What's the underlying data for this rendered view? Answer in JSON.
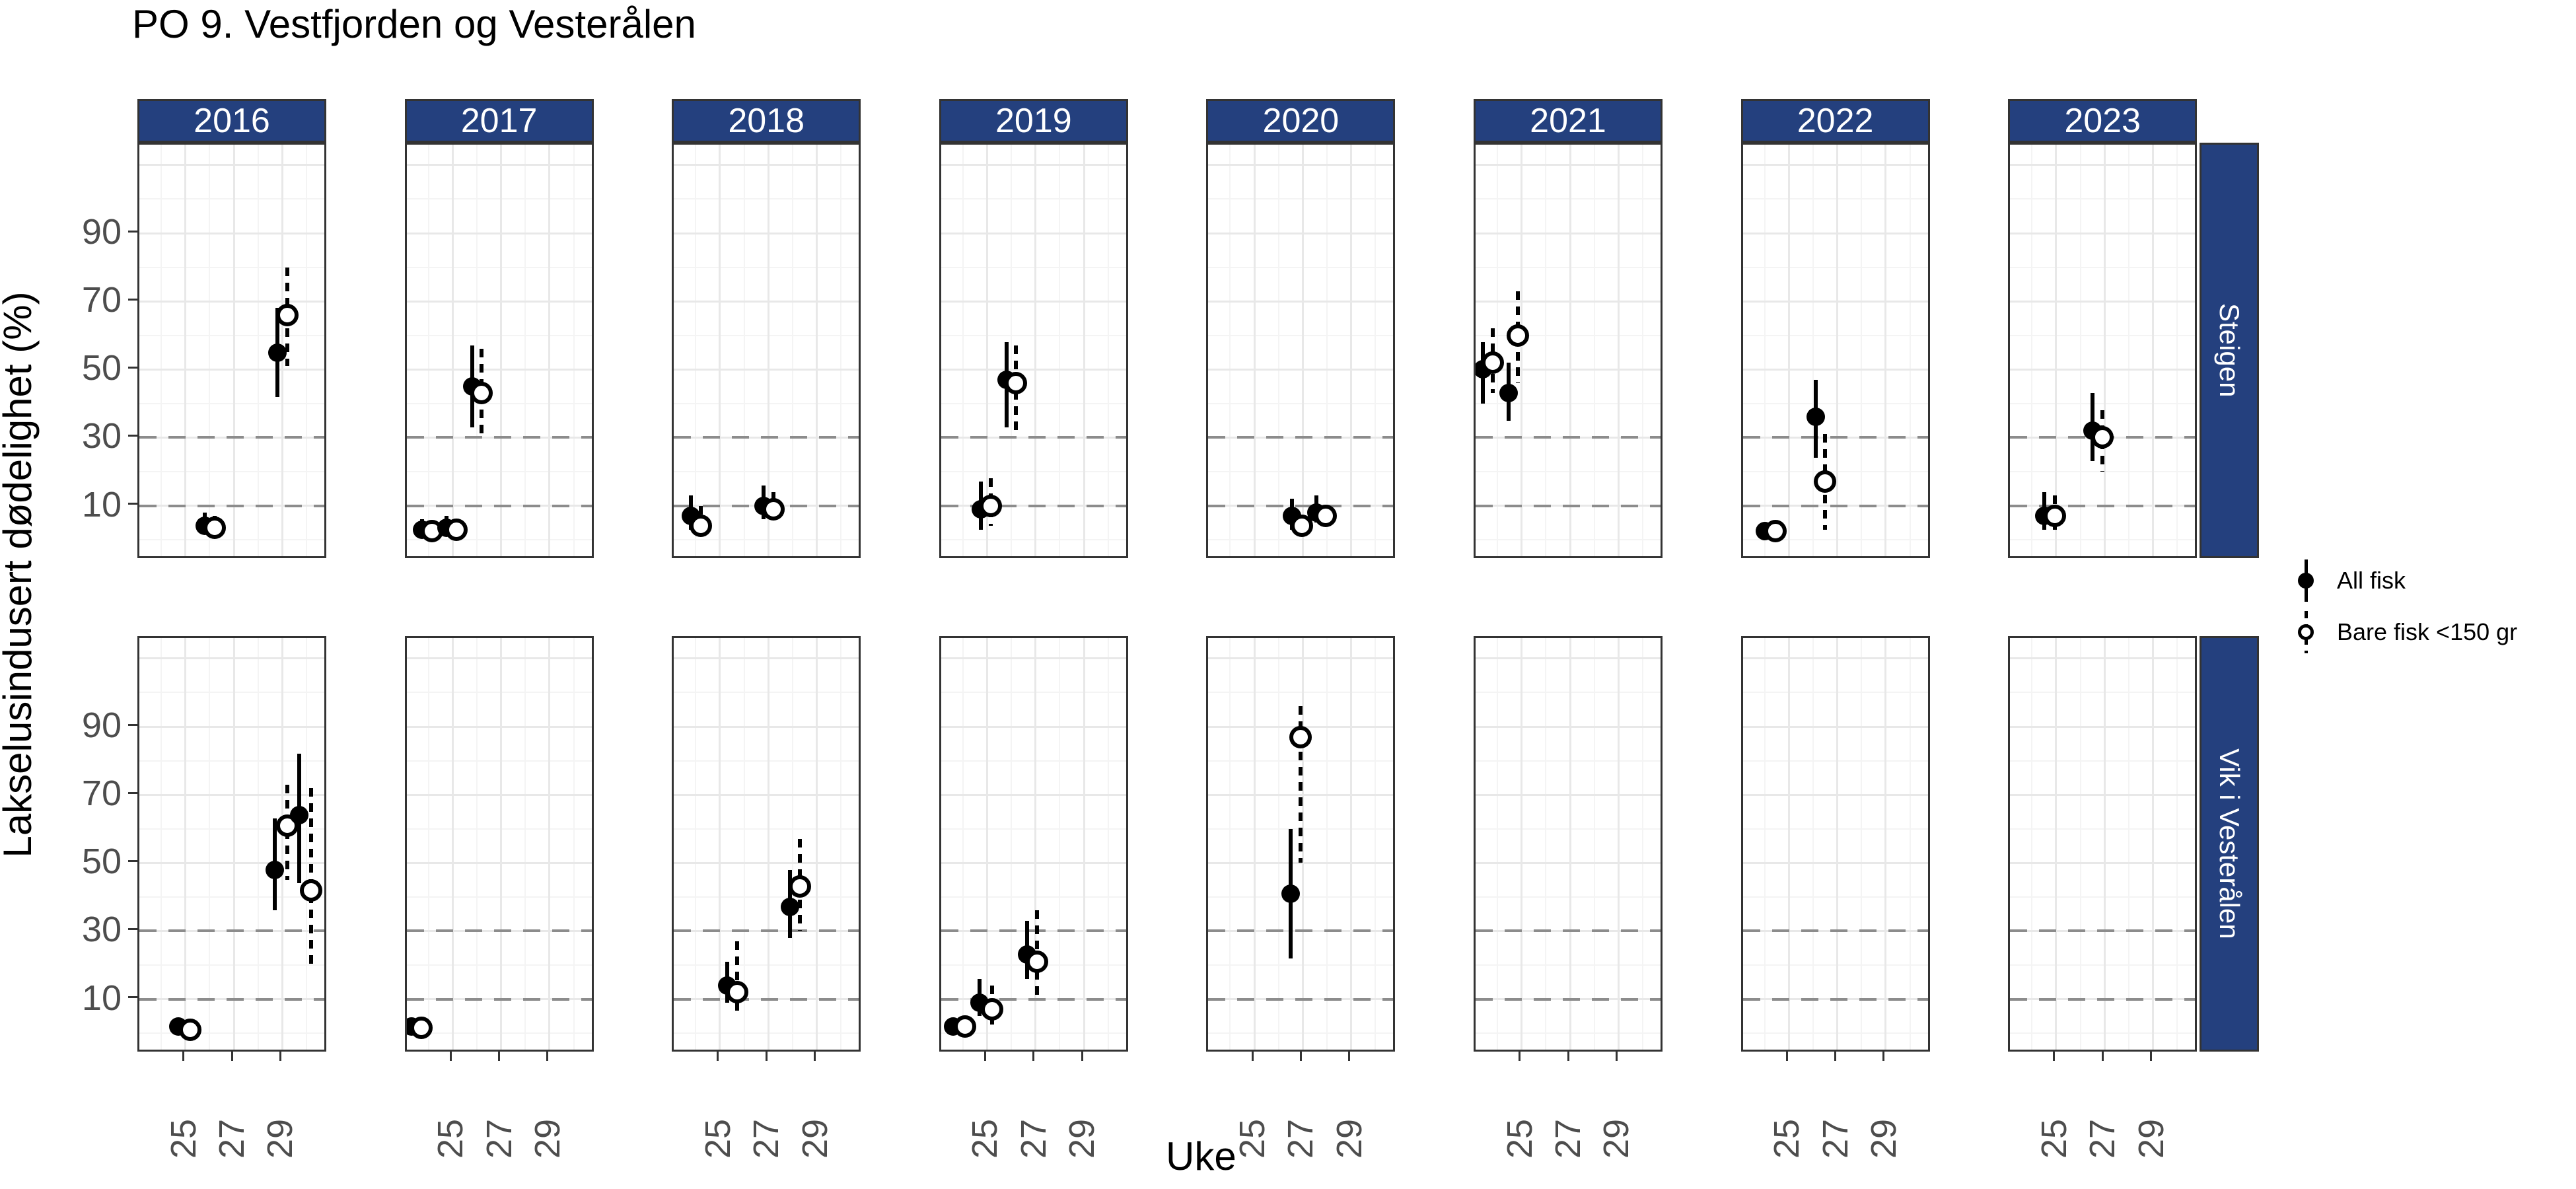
{
  "title": "PO 9. Vestfjorden og Vesterålen",
  "axes": {
    "x_title": "Uke",
    "y_title": "Lakselusindusert dødelighet (%)"
  },
  "legend": {
    "items": [
      {
        "label": "All fisk",
        "marker": "filled-circle",
        "line": "solid"
      },
      {
        "label": "Bare fisk <150 gr",
        "marker": "open-circle",
        "line": "dashed"
      }
    ]
  },
  "colors": {
    "strip_bg": "#24407E",
    "strip_text": "#FFFFFF",
    "panel_border": "#333333",
    "grid_major": "#E8E8E8",
    "grid_minor": "#F4F4F4",
    "ref_line": "#8C8C8C",
    "axis_text": "#4D4D4D",
    "point": "#000000"
  },
  "chart_data": {
    "type": "scatter",
    "title": "PO 9. Vestfjorden og Vesterålen",
    "xlabel": "Uke",
    "ylabel": "Lakselusindusert dødelighet (%)",
    "col_facets": [
      "2016",
      "2017",
      "2018",
      "2019",
      "2020",
      "2021",
      "2022",
      "2023"
    ],
    "row_facets": [
      "Steigen",
      "Vik i Vesterålen"
    ],
    "x_ticks": [
      25,
      27,
      29
    ],
    "y_ticks": [
      10,
      30,
      50,
      70,
      90
    ],
    "x_minor": [
      24,
      26,
      28,
      30
    ],
    "y_minor": [
      0,
      20,
      40,
      60,
      80,
      100
    ],
    "y_major_extra": [
      110
    ],
    "x_domain": [
      23.1,
      30.9
    ],
    "y_domain": [
      -6,
      116
    ],
    "ref_lines": [
      10,
      30
    ],
    "grid": true,
    "legend_position": "right",
    "series": [
      {
        "name": "All fisk",
        "key": "all",
        "marker": "filled",
        "line": "solid"
      },
      {
        "name": "Bare fisk <150 gr",
        "key": "bare",
        "marker": "open",
        "line": "dashed"
      }
    ],
    "points": [
      {
        "row": "Steigen",
        "year": "2016",
        "series": "all",
        "week": 25.8,
        "y": 4,
        "lo": 2,
        "hi": 8
      },
      {
        "row": "Steigen",
        "year": "2016",
        "series": "bare",
        "week": 26.2,
        "y": 3.5,
        "lo": 1,
        "hi": 7
      },
      {
        "row": "Steigen",
        "year": "2016",
        "series": "all",
        "week": 28.8,
        "y": 55,
        "lo": 42,
        "hi": 68
      },
      {
        "row": "Steigen",
        "year": "2016",
        "series": "bare",
        "week": 29.2,
        "y": 66,
        "lo": 51,
        "hi": 80
      },
      {
        "row": "Steigen",
        "year": "2017",
        "series": "all",
        "week": 23.75,
        "y": 3,
        "lo": 1,
        "hi": 6
      },
      {
        "row": "Steigen",
        "year": "2017",
        "series": "bare",
        "week": 24.15,
        "y": 2.5,
        "lo": 0.5,
        "hi": 5
      },
      {
        "row": "Steigen",
        "year": "2017",
        "series": "all",
        "week": 24.75,
        "y": 3.5,
        "lo": 1.5,
        "hi": 7
      },
      {
        "row": "Steigen",
        "year": "2017",
        "series": "bare",
        "week": 25.15,
        "y": 3,
        "lo": 1,
        "hi": 6
      },
      {
        "row": "Steigen",
        "year": "2017",
        "series": "all",
        "week": 25.8,
        "y": 45,
        "lo": 33,
        "hi": 57
      },
      {
        "row": "Steigen",
        "year": "2017",
        "series": "bare",
        "week": 26.2,
        "y": 43,
        "lo": 30,
        "hi": 56
      },
      {
        "row": "Steigen",
        "year": "2018",
        "series": "all",
        "week": 23.8,
        "y": 7,
        "lo": 3,
        "hi": 13
      },
      {
        "row": "Steigen",
        "year": "2018",
        "series": "bare",
        "week": 24.2,
        "y": 4,
        "lo": 1,
        "hi": 10
      },
      {
        "row": "Steigen",
        "year": "2018",
        "series": "all",
        "week": 26.8,
        "y": 10,
        "lo": 6,
        "hi": 16
      },
      {
        "row": "Steigen",
        "year": "2018",
        "series": "bare",
        "week": 27.2,
        "y": 9,
        "lo": 5,
        "hi": 14
      },
      {
        "row": "Steigen",
        "year": "2019",
        "series": "all",
        "week": 24.75,
        "y": 9,
        "lo": 3,
        "hi": 17
      },
      {
        "row": "Steigen",
        "year": "2019",
        "series": "bare",
        "week": 25.15,
        "y": 10,
        "lo": 4,
        "hi": 18
      },
      {
        "row": "Steigen",
        "year": "2019",
        "series": "all",
        "week": 25.8,
        "y": 47,
        "lo": 33,
        "hi": 58
      },
      {
        "row": "Steigen",
        "year": "2019",
        "series": "bare",
        "week": 26.2,
        "y": 46,
        "lo": 32,
        "hi": 57
      },
      {
        "row": "Steigen",
        "year": "2020",
        "series": "all",
        "week": 26.55,
        "y": 7,
        "lo": 3,
        "hi": 12
      },
      {
        "row": "Steigen",
        "year": "2020",
        "series": "bare",
        "week": 26.95,
        "y": 4,
        "lo": 1.5,
        "hi": 7
      },
      {
        "row": "Steigen",
        "year": "2020",
        "series": "all",
        "week": 27.55,
        "y": 8,
        "lo": 5,
        "hi": 13
      },
      {
        "row": "Steigen",
        "year": "2020",
        "series": "bare",
        "week": 27.95,
        "y": 7,
        "lo": 4,
        "hi": 10
      },
      {
        "row": "Steigen",
        "year": "2021",
        "series": "all",
        "week": 23.4,
        "y": 50,
        "lo": 40,
        "hi": 58
      },
      {
        "row": "Steigen",
        "year": "2021",
        "series": "bare",
        "week": 23.8,
        "y": 52,
        "lo": 43,
        "hi": 62
      },
      {
        "row": "Steigen",
        "year": "2021",
        "series": "all",
        "week": 24.45,
        "y": 43,
        "lo": 35,
        "hi": 52
      },
      {
        "row": "Steigen",
        "year": "2021",
        "series": "bare",
        "week": 24.85,
        "y": 60,
        "lo": 46,
        "hi": 73
      },
      {
        "row": "Steigen",
        "year": "2022",
        "series": "all",
        "week": 24.0,
        "y": 2.5
      },
      {
        "row": "Steigen",
        "year": "2022",
        "series": "bare",
        "week": 24.45,
        "y": 2.5
      },
      {
        "row": "Steigen",
        "year": "2022",
        "series": "all",
        "week": 26.1,
        "y": 36,
        "lo": 24,
        "hi": 47
      },
      {
        "row": "Steigen",
        "year": "2022",
        "series": "bare",
        "week": 26.5,
        "y": 17,
        "lo": 3,
        "hi": 31
      },
      {
        "row": "Steigen",
        "year": "2023",
        "series": "all",
        "week": 24.5,
        "y": 7,
        "lo": 3,
        "hi": 14
      },
      {
        "row": "Steigen",
        "year": "2023",
        "series": "bare",
        "week": 24.95,
        "y": 7,
        "lo": 3,
        "hi": 13
      },
      {
        "row": "Steigen",
        "year": "2023",
        "series": "all",
        "week": 26.5,
        "y": 32,
        "lo": 23,
        "hi": 43
      },
      {
        "row": "Steigen",
        "year": "2023",
        "series": "bare",
        "week": 26.9,
        "y": 30,
        "lo": 20,
        "hi": 38
      },
      {
        "row": "Vik i Vesterålen",
        "year": "2016",
        "series": "all",
        "week": 24.7,
        "y": 2
      },
      {
        "row": "Vik i Vesterålen",
        "year": "2016",
        "series": "bare",
        "week": 25.2,
        "y": 1
      },
      {
        "row": "Vik i Vesterålen",
        "year": "2016",
        "series": "all",
        "week": 28.7,
        "y": 48,
        "lo": 36,
        "hi": 63
      },
      {
        "row": "Vik i Vesterålen",
        "year": "2016",
        "series": "bare",
        "week": 29.2,
        "y": 61,
        "lo": 45,
        "hi": 73
      },
      {
        "row": "Vik i Vesterålen",
        "year": "2016",
        "series": "all",
        "week": 29.7,
        "y": 64,
        "lo": 44,
        "hi": 82
      },
      {
        "row": "Vik i Vesterålen",
        "year": "2016",
        "series": "bare",
        "week": 30.2,
        "y": 42,
        "lo": 20,
        "hi": 72
      },
      {
        "row": "Vik i Vesterålen",
        "year": "2017",
        "series": "all",
        "week": 23.3,
        "y": 2
      },
      {
        "row": "Vik i Vesterålen",
        "year": "2017",
        "series": "bare",
        "week": 23.7,
        "y": 1.5
      },
      {
        "row": "Vik i Vesterålen",
        "year": "2018",
        "series": "all",
        "week": 25.3,
        "y": 14,
        "lo": 9,
        "hi": 21
      },
      {
        "row": "Vik i Vesterålen",
        "year": "2018",
        "series": "bare",
        "week": 25.7,
        "y": 12,
        "lo": 5,
        "hi": 27
      },
      {
        "row": "Vik i Vesterålen",
        "year": "2018",
        "series": "all",
        "week": 27.9,
        "y": 37,
        "lo": 28,
        "hi": 48
      },
      {
        "row": "Vik i Vesterålen",
        "year": "2018",
        "series": "bare",
        "week": 28.3,
        "y": 43,
        "lo": 30,
        "hi": 57
      },
      {
        "row": "Vik i Vesterålen",
        "year": "2019",
        "series": "all",
        "week": 23.6,
        "y": 2
      },
      {
        "row": "Vik i Vesterålen",
        "year": "2019",
        "series": "bare",
        "week": 24.1,
        "y": 2
      },
      {
        "row": "Vik i Vesterålen",
        "year": "2019",
        "series": "all",
        "week": 24.7,
        "y": 9,
        "lo": 5,
        "hi": 16
      },
      {
        "row": "Vik i Vesterålen",
        "year": "2019",
        "series": "bare",
        "week": 25.2,
        "y": 7,
        "lo": 2,
        "hi": 14
      },
      {
        "row": "Vik i Vesterålen",
        "year": "2019",
        "series": "all",
        "week": 26.65,
        "y": 23,
        "lo": 16,
        "hi": 33
      },
      {
        "row": "Vik i Vesterålen",
        "year": "2019",
        "series": "bare",
        "week": 27.05,
        "y": 21,
        "lo": 10,
        "hi": 36
      },
      {
        "row": "Vik i Vesterålen",
        "year": "2020",
        "series": "all",
        "week": 26.5,
        "y": 41,
        "lo": 22,
        "hi": 60
      },
      {
        "row": "Vik i Vesterålen",
        "year": "2020",
        "series": "bare",
        "week": 26.9,
        "y": 87,
        "lo": 50,
        "hi": 96
      }
    ]
  }
}
